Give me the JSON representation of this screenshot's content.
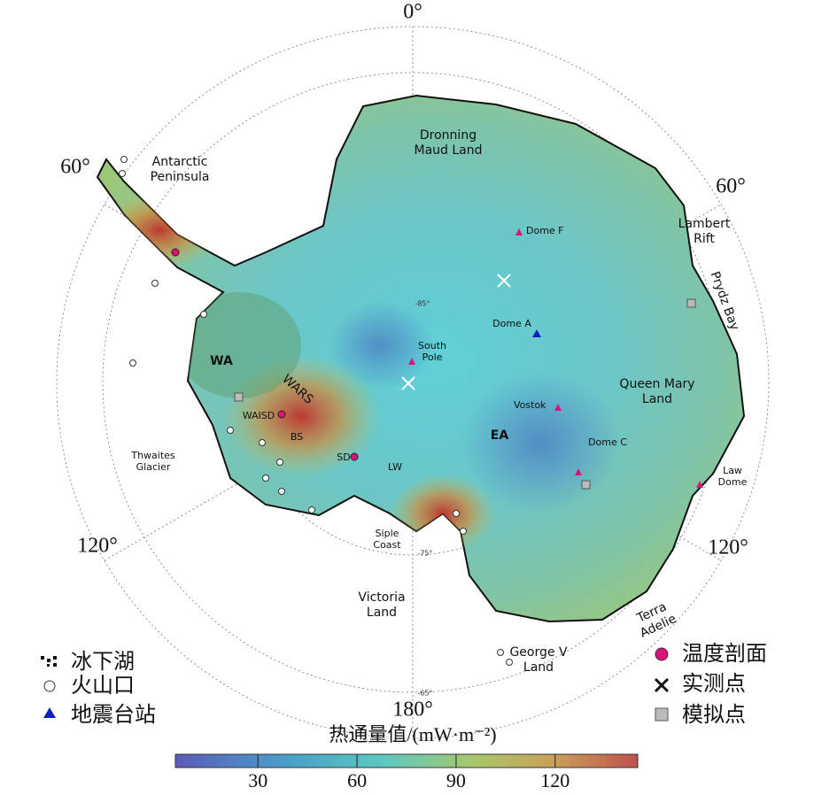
{
  "map": {
    "degree_labels": [
      "0°",
      "60°",
      "60°",
      "120°",
      "120°",
      "180°"
    ],
    "latitude_labels": [
      "-85°",
      "-75°",
      "-65°"
    ],
    "place_labels": [
      [
        "Antarctic",
        "Peninsula"
      ],
      [
        "Dronning",
        "Maud Land"
      ],
      [
        "Lambert",
        "Rift"
      ],
      [
        "Prydz Bay"
      ],
      [
        "Dome F"
      ],
      [
        "Dome A"
      ],
      [
        "South",
        "Pole"
      ],
      [
        "Vostok"
      ],
      [
        "Queen Mary",
        "Land"
      ],
      [
        "WA"
      ],
      [
        "EA"
      ],
      [
        "WARS"
      ],
      [
        "WAISD"
      ],
      [
        "BS"
      ],
      [
        "SD"
      ],
      [
        "LW"
      ],
      [
        "Thwaites",
        "Glacier"
      ],
      [
        "Siple",
        "Coast"
      ],
      [
        "Victoria",
        "Land"
      ],
      [
        "Dome C"
      ],
      [
        "Law",
        "Dome"
      ],
      [
        "George V",
        "Land"
      ],
      [
        "Terra",
        "Adelie"
      ]
    ],
    "legend": [
      "冰下湖",
      "火山口",
      "地震台站",
      "温度剖面",
      "实测点",
      "模拟点"
    ],
    "colorbar": {
      "title": "热通量值/(mW·m⁻²)",
      "range": [
        5,
        145
      ],
      "ticks": [
        30,
        60,
        90,
        120
      ]
    }
  }
}
